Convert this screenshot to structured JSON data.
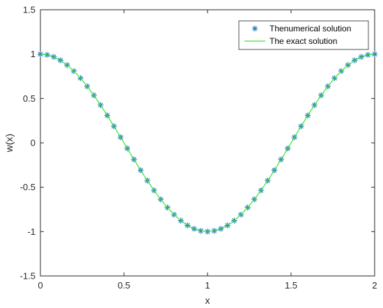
{
  "chart_data": {
    "type": "line",
    "title": "",
    "xlabel": "x",
    "ylabel": "w(x)",
    "xlim": [
      0,
      2
    ],
    "ylim": [
      -1.5,
      1.5
    ],
    "xticks": [
      0,
      0.5,
      1,
      1.5,
      2
    ],
    "xtick_labels": [
      "0",
      "0.5",
      "1",
      "1.5",
      "2"
    ],
    "yticks": [
      -1.5,
      -1,
      -0.5,
      0,
      0.5,
      1,
      1.5
    ],
    "ytick_labels": [
      "-1.5",
      "-1",
      "-0.5",
      "0",
      "0.5",
      "1",
      "1.5"
    ],
    "grid": false,
    "legend_position": "top-right",
    "series": [
      {
        "name": "Thenumerical solution",
        "kind": "markers",
        "marker": "asterisk",
        "color": "#1f77b4",
        "x": [
          0,
          0.04,
          0.08,
          0.12,
          0.16,
          0.2,
          0.24,
          0.28,
          0.32,
          0.36,
          0.4,
          0.44,
          0.48,
          0.52,
          0.56,
          0.6,
          0.64,
          0.68,
          0.72,
          0.76,
          0.8,
          0.84,
          0.88,
          0.92,
          0.96,
          1,
          1.04,
          1.08,
          1.12,
          1.16,
          1.2,
          1.24,
          1.28,
          1.32,
          1.36,
          1.4,
          1.44,
          1.48,
          1.52,
          1.56,
          1.6,
          1.64,
          1.68,
          1.72,
          1.76,
          1.8,
          1.84,
          1.88,
          1.92,
          1.96,
          2
        ],
        "y": [
          1,
          0.992,
          0.969,
          0.93,
          0.876,
          0.809,
          0.729,
          0.637,
          0.536,
          0.426,
          0.309,
          0.187,
          0.063,
          -0.063,
          -0.187,
          -0.309,
          -0.426,
          -0.536,
          -0.637,
          -0.729,
          -0.809,
          -0.876,
          -0.93,
          -0.969,
          -0.992,
          -1,
          -0.992,
          -0.969,
          -0.93,
          -0.876,
          -0.809,
          -0.729,
          -0.637,
          -0.536,
          -0.426,
          -0.309,
          -0.187,
          -0.063,
          0.063,
          0.187,
          0.309,
          0.426,
          0.536,
          0.637,
          0.729,
          0.809,
          0.876,
          0.93,
          0.969,
          0.992,
          1
        ]
      },
      {
        "name": "The exact solution",
        "kind": "line",
        "color": "#33e633",
        "x": [
          0,
          0.04,
          0.08,
          0.12,
          0.16,
          0.2,
          0.24,
          0.28,
          0.32,
          0.36,
          0.4,
          0.44,
          0.48,
          0.52,
          0.56,
          0.6,
          0.64,
          0.68,
          0.72,
          0.76,
          0.8,
          0.84,
          0.88,
          0.92,
          0.96,
          1,
          1.04,
          1.08,
          1.12,
          1.16,
          1.2,
          1.24,
          1.28,
          1.32,
          1.36,
          1.4,
          1.44,
          1.48,
          1.52,
          1.56,
          1.6,
          1.64,
          1.68,
          1.72,
          1.76,
          1.8,
          1.84,
          1.88,
          1.92,
          1.96,
          2
        ],
        "y": [
          1,
          0.992,
          0.969,
          0.93,
          0.876,
          0.809,
          0.729,
          0.637,
          0.536,
          0.426,
          0.309,
          0.187,
          0.063,
          -0.063,
          -0.187,
          -0.309,
          -0.426,
          -0.536,
          -0.637,
          -0.729,
          -0.809,
          -0.876,
          -0.93,
          -0.969,
          -0.992,
          -1,
          -0.992,
          -0.969,
          -0.93,
          -0.876,
          -0.809,
          -0.729,
          -0.637,
          -0.536,
          -0.426,
          -0.309,
          -0.187,
          -0.063,
          0.063,
          0.187,
          0.309,
          0.426,
          0.536,
          0.637,
          0.729,
          0.809,
          0.876,
          0.93,
          0.969,
          0.992,
          1
        ]
      }
    ]
  }
}
